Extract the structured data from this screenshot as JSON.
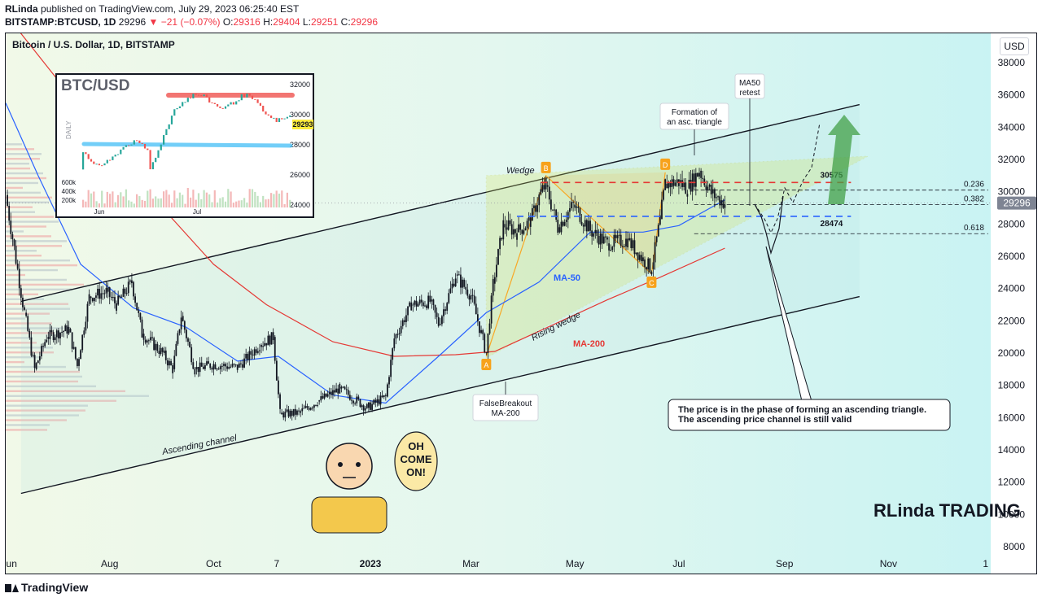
{
  "header": {
    "author": "RLinda",
    "published": "published on TradingView.com, July 29, 2023 06:25:40 EST",
    "symbol": "BITSTAMP:BTCUSD, 1D",
    "last": "29296",
    "change": "−21 (−0.07%)",
    "o_label": "O:",
    "o": "29316",
    "h_label": "H:",
    "h": "29404",
    "l_label": "L:",
    "l": "29251",
    "c_label": "C:",
    "c": "29296"
  },
  "currency": "USD",
  "footer": {
    "brand": "TradingView"
  },
  "colors": {
    "up": "#26a69a",
    "down": "#ef5350",
    "ma50": "#2962ff",
    "ma200": "#e53935",
    "channel": "#131722",
    "wedge": "#d4e157",
    "triangle": "#f9a825"
  },
  "chart_data": {
    "type": "candlestick",
    "title": "Bitcoin / U.S. Dollar, 1D, BITSTAMP",
    "y_axis": {
      "min": 8000,
      "max": 38000,
      "ticks": [
        8000,
        10000,
        12000,
        14000,
        16000,
        18000,
        20000,
        22000,
        24000,
        26000,
        28000,
        30000,
        32000,
        34000,
        36000,
        38000
      ],
      "tick_labels": [
        "8000",
        "10000",
        "12000",
        "14000",
        "16000",
        "18000",
        "20000",
        "22000",
        "24000",
        "26000",
        "28000",
        "30000",
        "32000",
        "34000",
        "36000",
        "38000"
      ]
    },
    "x_axis": {
      "tick_labels": [
        "Jun",
        "Aug",
        "Oct",
        "7",
        "2023",
        "Mar",
        "May",
        "Jul",
        "Sep",
        "Nov",
        "1"
      ],
      "start": "2022-06-01",
      "end": "2023-12-31"
    },
    "price_path": [
      [
        "2022-06-01",
        29800
      ],
      [
        "2022-06-12",
        22500
      ],
      [
        "2022-06-18",
        19000
      ],
      [
        "2022-06-25",
        21000
      ],
      [
        "2022-07-08",
        21500
      ],
      [
        "2022-07-13",
        19200
      ],
      [
        "2022-07-20",
        23500
      ],
      [
        "2022-07-30",
        23800
      ],
      [
        "2022-08-05",
        23000
      ],
      [
        "2022-08-14",
        24400
      ],
      [
        "2022-08-20",
        21200
      ],
      [
        "2022-09-01",
        20000
      ],
      [
        "2022-09-07",
        19000
      ],
      [
        "2022-09-12",
        22300
      ],
      [
        "2022-09-20",
        19000
      ],
      [
        "2022-10-01",
        19300
      ],
      [
        "2022-10-15",
        19100
      ],
      [
        "2022-10-28",
        20500
      ],
      [
        "2022-11-05",
        21000
      ],
      [
        "2022-11-09",
        16200
      ],
      [
        "2022-11-20",
        16300
      ],
      [
        "2022-12-01",
        17000
      ],
      [
        "2022-12-14",
        17800
      ],
      [
        "2022-12-30",
        16600
      ],
      [
        "2023-01-10",
        17300
      ],
      [
        "2023-01-15",
        20900
      ],
      [
        "2023-01-25",
        23000
      ],
      [
        "2023-02-05",
        23200
      ],
      [
        "2023-02-10",
        21800
      ],
      [
        "2023-02-20",
        24800
      ],
      [
        "2023-03-01",
        23600
      ],
      [
        "2023-03-10",
        20000
      ],
      [
        "2023-03-14",
        24300
      ],
      [
        "2023-03-20",
        28000
      ],
      [
        "2023-03-28",
        27500
      ],
      [
        "2023-04-05",
        28200
      ],
      [
        "2023-04-11",
        30000
      ],
      [
        "2023-04-14",
        30400
      ],
      [
        "2023-04-21",
        27800
      ],
      [
        "2023-04-30",
        29200
      ],
      [
        "2023-05-10",
        27600
      ],
      [
        "2023-05-20",
        26800
      ],
      [
        "2023-06-01",
        27000
      ],
      [
        "2023-06-10",
        25800
      ],
      [
        "2023-06-15",
        25200
      ],
      [
        "2023-06-20",
        28300
      ],
      [
        "2023-06-23",
        30500
      ],
      [
        "2023-07-01",
        30600
      ],
      [
        "2023-07-06",
        30200
      ],
      [
        "2023-07-13",
        31300
      ],
      [
        "2023-07-20",
        29900
      ],
      [
        "2023-07-28",
        29296
      ]
    ],
    "ma50": [
      [
        "2022-06-01",
        35500
      ],
      [
        "2022-06-20",
        31000
      ],
      [
        "2022-07-15",
        25500
      ],
      [
        "2022-08-15",
        22800
      ],
      [
        "2022-09-15",
        21600
      ],
      [
        "2022-10-15",
        19500
      ],
      [
        "2022-11-08",
        19800
      ],
      [
        "2022-12-10",
        17400
      ],
      [
        "2023-01-10",
        16900
      ],
      [
        "2023-02-10",
        19800
      ],
      [
        "2023-03-10",
        22500
      ],
      [
        "2023-04-10",
        24400
      ],
      [
        "2023-05-10",
        27500
      ],
      [
        "2023-06-10",
        27500
      ],
      [
        "2023-07-01",
        27900
      ],
      [
        "2023-07-28",
        29500
      ]
    ],
    "ma200": [
      [
        "2022-06-01",
        41000
      ],
      [
        "2022-07-01",
        37000
      ],
      [
        "2022-08-01",
        33000
      ],
      [
        "2022-09-01",
        29000
      ],
      [
        "2022-10-01",
        25500
      ],
      [
        "2022-11-01",
        23000
      ],
      [
        "2022-12-10",
        20700
      ],
      [
        "2023-01-15",
        19800
      ],
      [
        "2023-02-20",
        19900
      ],
      [
        "2023-03-15",
        20100
      ],
      [
        "2023-04-15",
        21600
      ],
      [
        "2023-05-20",
        23300
      ],
      [
        "2023-06-20",
        24700
      ],
      [
        "2023-07-28",
        26500
      ]
    ],
    "lines": {
      "channel_upper": [
        [
          "2022-06-10",
          23200
        ],
        [
          "2023-10-15",
          35400
        ]
      ],
      "channel_lower": [
        [
          "2022-06-10",
          11300
        ],
        [
          "2023-10-15",
          23500
        ]
      ],
      "wedge_top_left": [
        "2023-03-10",
        31000
      ],
      "wedge_bottom_left": [
        "2023-03-10",
        19700
      ],
      "wedge_tip": [
        "2023-10-20",
        32200
      ],
      "resistance": {
        "value": 30575,
        "from": "2023-04-11",
        "to": "2023-10-10"
      },
      "support": {
        "value": 28474,
        "from": "2023-03-28",
        "to": "2023-10-10"
      },
      "fib": [
        {
          "label": "0.236",
          "value": 30100
        },
        {
          "label": "0.382",
          "value": 29200
        },
        {
          "label": "0.618",
          "value": 27400
        }
      ]
    },
    "points": [
      {
        "label": "A",
        "date": "2023-03-10",
        "price": 19800
      },
      {
        "label": "B",
        "date": "2023-04-14",
        "price": 31000
      },
      {
        "label": "C",
        "date": "2023-06-15",
        "price": 24900
      },
      {
        "label": "D",
        "date": "2023-06-23",
        "price": 31200
      }
    ],
    "annotations": {
      "wedge": "Wedge",
      "rising_wedge": "Rising wedge",
      "ma50": "MA-50",
      "ma200": "MA-200",
      "channel": "Ascending channel",
      "false_breakout": [
        "FalseBreakout",
        "MA-200"
      ],
      "formation": [
        "Formation of",
        "an asc. triangle"
      ],
      "ma50_retest": [
        "MA50",
        "retest"
      ],
      "level_high": "30575",
      "level_low": "28474",
      "note": [
        "The price is in the phase of forming an ascending triangle.",
        "The ascending price channel is still valid"
      ],
      "meme": [
        "OH",
        "COME",
        "ON!"
      ],
      "logo": "RLinda TRADING"
    },
    "inset": {
      "title": "BTC/USD",
      "side_label": "DAILY",
      "x_labels": [
        "Jun",
        "Jul"
      ],
      "y_labels": [
        "32000",
        "30000",
        "28000",
        "26000",
        "24000"
      ],
      "vol_labels": [
        "600k",
        "400k",
        "200k"
      ],
      "price_tag": "29293"
    }
  }
}
